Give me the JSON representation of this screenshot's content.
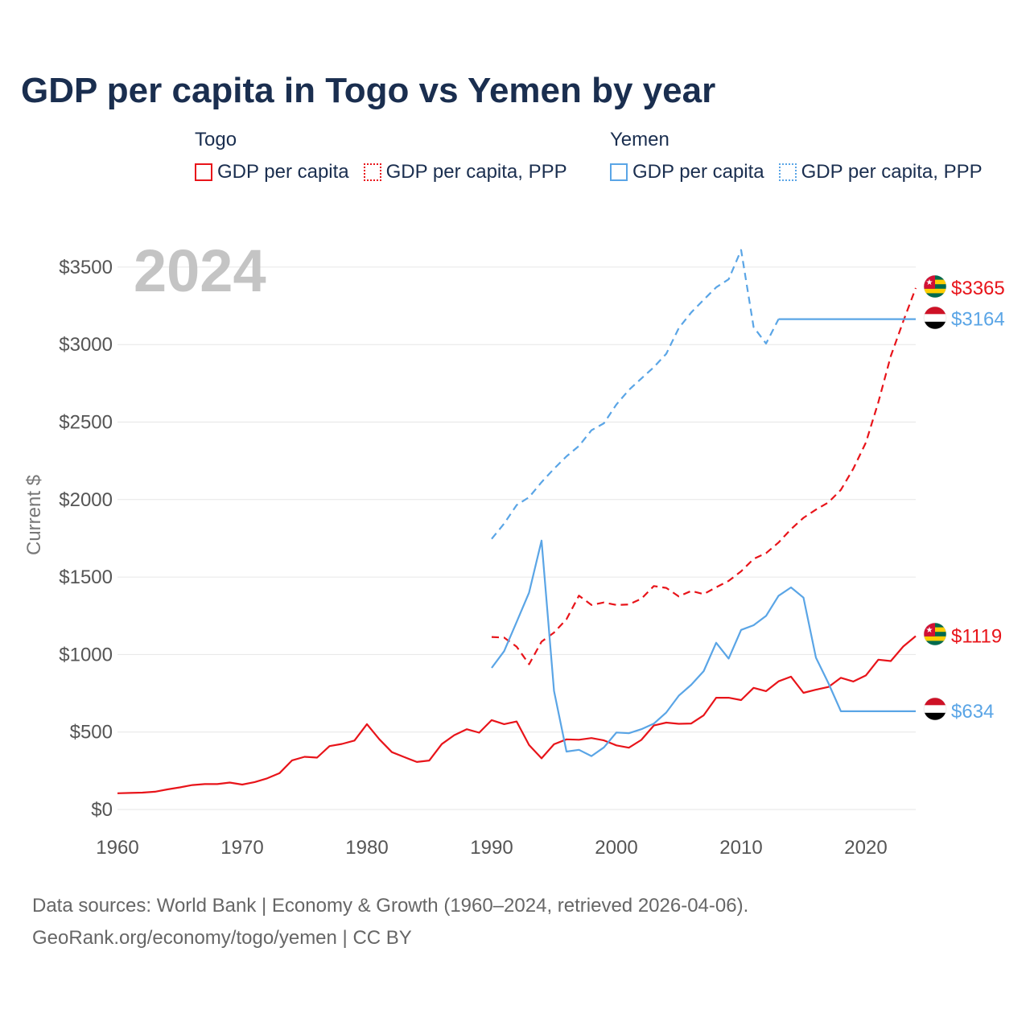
{
  "title": "GDP per capita in Togo vs Yemen by year",
  "legend": {
    "groups": [
      {
        "name": "Togo",
        "color": "#e8141a",
        "items": [
          {
            "label": "GDP per capita",
            "style": "solid"
          },
          {
            "label": "GDP per capita, PPP",
            "style": "dotted"
          }
        ]
      },
      {
        "name": "Yemen",
        "color": "#5aa5e6",
        "items": [
          {
            "label": "GDP per capita",
            "style": "solid"
          },
          {
            "label": "GDP per capita, PPP",
            "style": "dotted"
          }
        ]
      }
    ]
  },
  "footer": {
    "line1": "Data sources: World Bank | Economy & Growth (1960–2024, retrieved 2026-04-06).",
    "line2": "GeoRank.org/economy/togo/yemen | CC BY"
  },
  "chart_data": {
    "type": "line",
    "year_watermark": "2024",
    "ylabel": "Current $",
    "xlim": [
      1960,
      2024
    ],
    "ylim": [
      0,
      3600
    ],
    "xticks": [
      1960,
      1970,
      1980,
      1990,
      2000,
      2010,
      2020
    ],
    "yticks": [
      0,
      500,
      1000,
      1500,
      2000,
      2500,
      3000,
      3500
    ],
    "ytick_labels": [
      "$0",
      "$500",
      "$1000",
      "$1500",
      "$2000",
      "$2500",
      "$3000",
      "$3500"
    ],
    "grid": true,
    "series": [
      {
        "name": "Togo GDP per capita",
        "country": "Togo",
        "color": "#e8141a",
        "dash": "solid",
        "end_label": "$1119",
        "x": [
          1960,
          1961,
          1962,
          1963,
          1964,
          1965,
          1966,
          1967,
          1968,
          1969,
          1970,
          1971,
          1972,
          1973,
          1974,
          1975,
          1976,
          1977,
          1978,
          1979,
          1980,
          1981,
          1982,
          1983,
          1984,
          1985,
          1986,
          1987,
          1988,
          1989,
          1990,
          1991,
          1992,
          1993,
          1994,
          1995,
          1996,
          1997,
          1998,
          1999,
          2000,
          2001,
          2002,
          2003,
          2004,
          2005,
          2006,
          2007,
          2008,
          2009,
          2010,
          2011,
          2012,
          2013,
          2014,
          2015,
          2016,
          2017,
          2018,
          2019,
          2020,
          2021,
          2022,
          2023,
          2024
        ],
        "values": [
          105,
          107,
          109,
          115,
          130,
          143,
          158,
          164,
          164,
          174,
          161,
          177,
          201,
          235,
          317,
          340,
          335,
          409,
          423,
          445,
          551,
          453,
          370,
          338,
          307,
          316,
          422,
          480,
          518,
          496,
          577,
          551,
          568,
          416,
          330,
          421,
          453,
          450,
          461,
          446,
          414,
          399,
          449,
          542,
          561,
          553,
          555,
          608,
          721,
          721,
          706,
          785,
          764,
          827,
          857,
          753,
          773,
          791,
          850,
          826,
          865,
          967,
          958,
          1052,
          1119
        ]
      },
      {
        "name": "Togo GDP per capita, PPP",
        "country": "Togo",
        "color": "#e8141a",
        "dash": "dashed",
        "end_label": "$3365",
        "x": [
          1990,
          1991,
          1992,
          1993,
          1994,
          1995,
          1996,
          1997,
          1998,
          1999,
          2000,
          2001,
          2002,
          2003,
          2004,
          2005,
          2006,
          2007,
          2008,
          2009,
          2010,
          2011,
          2012,
          2013,
          2014,
          2015,
          2016,
          2017,
          2018,
          2019,
          2020,
          2021,
          2022,
          2023,
          2024
        ],
        "values": [
          1113,
          1109,
          1051,
          937,
          1083,
          1142,
          1228,
          1380,
          1320,
          1336,
          1320,
          1323,
          1360,
          1442,
          1430,
          1375,
          1410,
          1390,
          1434,
          1475,
          1537,
          1617,
          1654,
          1723,
          1809,
          1882,
          1935,
          1982,
          2063,
          2200,
          2367,
          2627,
          2926,
          3150,
          3365
        ]
      },
      {
        "name": "Yemen GDP per capita",
        "country": "Yemen",
        "color": "#5aa5e6",
        "dash": "solid",
        "end_label": "$634",
        "x": [
          1990,
          1991,
          1992,
          1993,
          1994,
          1995,
          1996,
          1997,
          1998,
          1999,
          2000,
          2001,
          2002,
          2003,
          2004,
          2005,
          2006,
          2007,
          2008,
          2009,
          2010,
          2011,
          2012,
          2013,
          2014,
          2015,
          2016,
          2017,
          2018,
          2019,
          2020,
          2021,
          2022,
          2023,
          2024
        ],
        "values": [
          914,
          1022,
          1210,
          1400,
          1735,
          765,
          374,
          385,
          345,
          401,
          497,
          492,
          518,
          554,
          626,
          734,
          805,
          893,
          1076,
          974,
          1159,
          1189,
          1249,
          1379,
          1433,
          1367,
          980,
          815,
          634,
          634,
          634,
          634,
          634,
          634,
          634
        ]
      },
      {
        "name": "Yemen GDP per capita, PPP",
        "country": "Yemen",
        "color": "#5aa5e6",
        "dash": "dashed",
        "end_label": "$3164",
        "x": [
          1990,
          1991,
          1992,
          1993,
          1994,
          1995,
          1996,
          1997,
          1998,
          1999,
          2000,
          2001,
          2002,
          2003,
          2004,
          2005,
          2006,
          2007,
          2008,
          2009,
          2010,
          2011,
          2012,
          2013
        ],
        "values": [
          1746,
          1845,
          1964,
          2015,
          2112,
          2199,
          2279,
          2346,
          2447,
          2492,
          2613,
          2707,
          2781,
          2854,
          2941,
          3106,
          3207,
          3289,
          3369,
          3421,
          3610,
          3113,
          3007,
          3164
        ]
      },
      {
        "name": "Yemen GDP per capita, PPP (carried forward)",
        "country": "Yemen",
        "color": "#5aa5e6",
        "dash": "solid",
        "end_label": "",
        "x": [
          2013,
          2014,
          2015,
          2016,
          2017,
          2018,
          2019,
          2020,
          2021,
          2022,
          2023,
          2024
        ],
        "values": [
          3164,
          3164,
          3164,
          3164,
          3164,
          3164,
          3164,
          3164,
          3164,
          3164,
          3164,
          3164
        ]
      }
    ]
  },
  "icons": {
    "togo_flag": "togo-flag-icon",
    "yemen_flag": "yemen-flag-icon"
  }
}
